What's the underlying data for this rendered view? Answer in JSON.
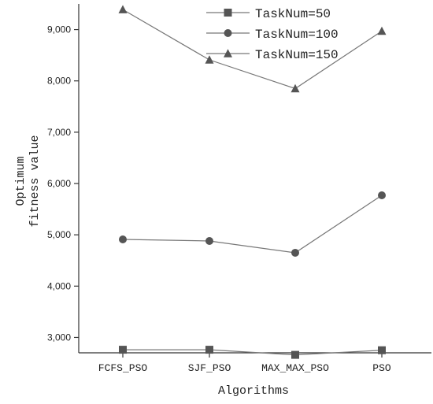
{
  "chart_data": {
    "type": "line",
    "categories": [
      "FCFS_PSO",
      "SJF_PSO",
      "MAX_MAX_PSO",
      "PSO"
    ],
    "xlabel": "Algorithms",
    "ylabel_lines": [
      "Optimum",
      "fitness value"
    ],
    "ylim": [
      2700,
      9500
    ],
    "yticks": [
      3000,
      4000,
      5000,
      6000,
      7000,
      8000,
      9000
    ],
    "ytick_labels": [
      "3,000",
      "4,000",
      "5,000",
      "6,000",
      "7,000",
      "8,000",
      "9,000"
    ],
    "grid": false,
    "legend_position": "top-right",
    "series": [
      {
        "name": "TaskNum=50",
        "marker": "square",
        "color": "#555555",
        "values": [
          2760,
          2760,
          2660,
          2750
        ]
      },
      {
        "name": "TaskNum=100",
        "marker": "circle",
        "color": "#555555",
        "values": [
          4910,
          4880,
          4650,
          5770
        ]
      },
      {
        "name": "TaskNum=150",
        "marker": "triangle",
        "color": "#555555",
        "values": [
          9390,
          8410,
          7850,
          8970
        ]
      }
    ]
  }
}
